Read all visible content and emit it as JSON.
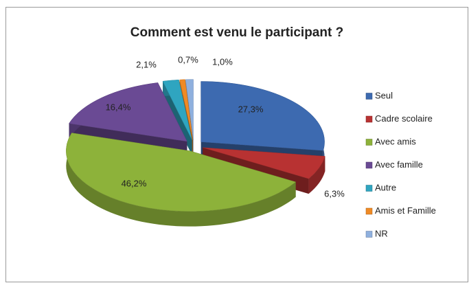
{
  "chart_data": {
    "type": "pie3d",
    "title": "Comment est venu le participant ?",
    "categories": [
      "Seul",
      "Cadre scolaire",
      "Avec amis",
      "Avec famille",
      "Autre",
      "Amis et Famille",
      "NR"
    ],
    "values": [
      27.3,
      6.3,
      46.2,
      16.4,
      2.1,
      0.7,
      1.0
    ],
    "value_labels": [
      "27,3%",
      "6,3%",
      "46,2%",
      "16,4%",
      "2,1%",
      "0,7%",
      "1,0%"
    ],
    "colors": [
      "#3d6ab0",
      "#b83232",
      "#8db23a",
      "#6a4a94",
      "#2fa5c0",
      "#ef8a25",
      "#8fb0de"
    ],
    "legend": "right"
  }
}
